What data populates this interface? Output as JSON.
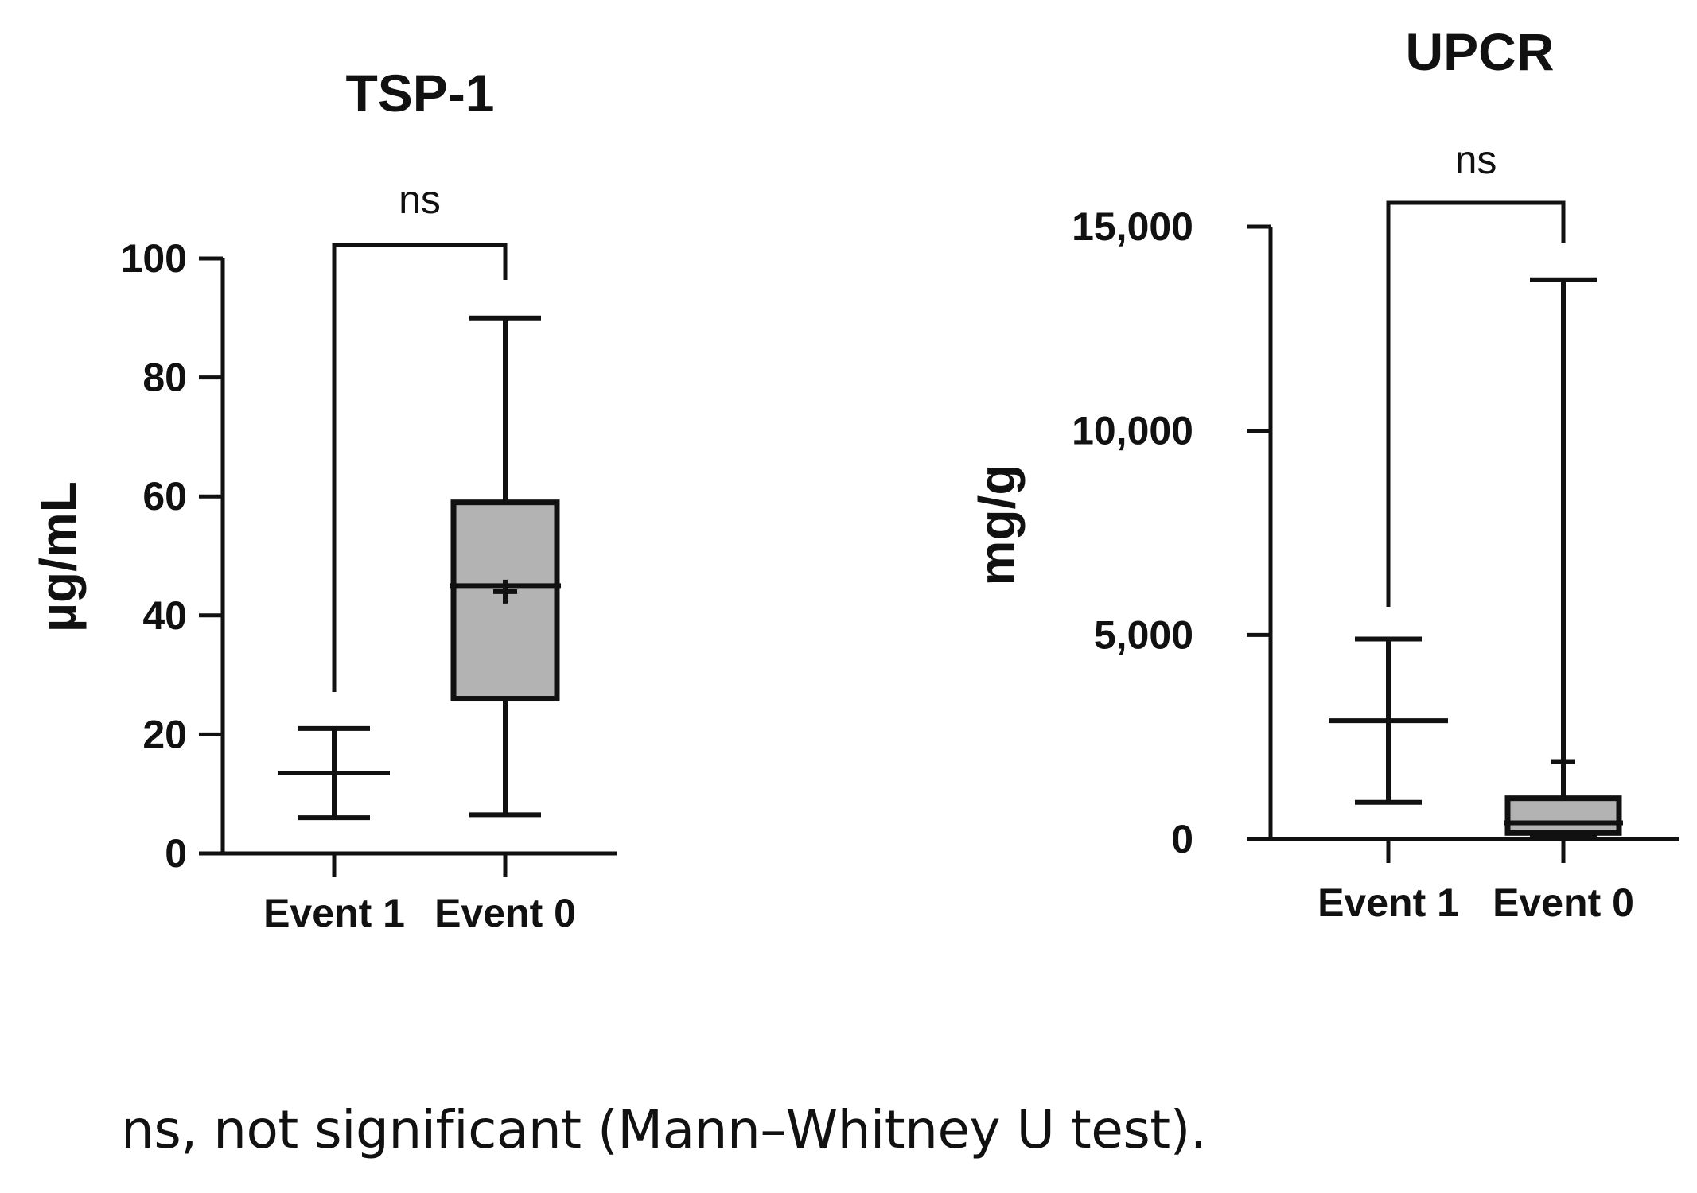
{
  "chart_data": [
    {
      "type": "box",
      "title": "TSP-1",
      "ylabel": "µg/mL",
      "xlabel": "",
      "ylim": [
        0,
        100
      ],
      "yticks": [
        0,
        20,
        40,
        60,
        80,
        100
      ],
      "ytick_labels": [
        "0",
        "20",
        "40",
        "60",
        "80",
        "100"
      ],
      "grid": false,
      "categories": [
        "Event 1",
        "Event 0"
      ],
      "boxes": [
        {
          "name": "Event 1",
          "min": 6,
          "q1": 13.5,
          "median": 13.5,
          "q3": 13.5,
          "max": 21,
          "mean": 13.5
        },
        {
          "name": "Event 0",
          "min": 6.5,
          "q1": 26,
          "median": 45,
          "q3": 59,
          "max": 90,
          "mean": 44
        }
      ],
      "significance": {
        "between": [
          "Event 1",
          "Event 0"
        ],
        "label": "ns"
      }
    },
    {
      "type": "box",
      "title": "UPCR",
      "ylabel": "mg/g",
      "xlabel": "",
      "ylim": [
        0,
        15000
      ],
      "yticks": [
        0,
        5000,
        10000,
        15000
      ],
      "ytick_labels": [
        "0",
        "5,000",
        "10,000",
        "15,000"
      ],
      "grid": false,
      "categories": [
        "Event 1",
        "Event 0"
      ],
      "boxes": [
        {
          "name": "Event 1",
          "min": 900,
          "q1": 2900,
          "median": 2900,
          "q3": 2900,
          "max": 4900,
          "mean": 2900
        },
        {
          "name": "Event 0",
          "min": 100,
          "q1": 150,
          "median": 400,
          "q3": 1000,
          "max": 13700,
          "mean": 1900
        }
      ],
      "significance": {
        "between": [
          "Event 1",
          "Event 0"
        ],
        "label": "ns"
      }
    }
  ],
  "caption": "ns, not significant (Mann–Whitney U test)."
}
